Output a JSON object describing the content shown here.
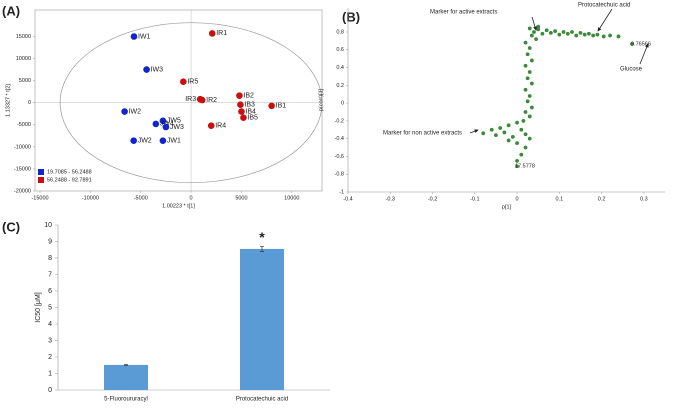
{
  "chart_data": [
    {
      "type": "scatter",
      "title": "(A)",
      "x_label": "1.00223 * t[1]",
      "y_label": "1.13327 * t[2]",
      "xlim": [
        -15500,
        13000
      ],
      "ylim": [
        -20000,
        21000
      ],
      "xticks": [
        -15000,
        -10000,
        -5000,
        0,
        5000,
        10000
      ],
      "yticks": [
        -20000,
        -15000,
        -10000,
        -5000,
        0,
        5000,
        10000,
        15000
      ],
      "legend": "lower left",
      "series": [
        {
          "name": "19.7085 - 56.2488",
          "color": "#1024d0",
          "labels": [
            "IW1",
            "IW3",
            "IW2",
            "JW5",
            "JW4",
            "JW3",
            "JW2",
            "JW1"
          ],
          "x": [
            -5670,
            -4420,
            -6600,
            -2800,
            -3500,
            -2500,
            -5700,
            -2800
          ],
          "values": [
            15000,
            7500,
            -2000,
            -4100,
            -4800,
            -5500,
            -8600,
            -8600
          ]
        },
        {
          "name": "56.2488 - 92.7891",
          "color": "#c81010",
          "labels": [
            "IR1",
            "IR5",
            "IR3",
            "IR2",
            "IB2",
            "IB1",
            "IB3",
            "IB4",
            "IB5",
            "IR4"
          ],
          "x": [
            2100,
            -770,
            900,
            1100,
            4800,
            8000,
            4900,
            5000,
            5200,
            2000
          ],
          "values": [
            15700,
            4770,
            800,
            600,
            1600,
            -700,
            -450,
            -2000,
            -3400,
            -5200
          ]
        }
      ]
    },
    {
      "type": "scatter",
      "title": "(B)",
      "x_label": "p[1]",
      "y_label": "p(corr)[1]",
      "xlim": [
        -0.4,
        0.35
      ],
      "ylim": [
        -1,
        1.07
      ],
      "xticks": [
        -0.4,
        -0.3,
        -0.2,
        -0.1,
        0,
        0.1,
        0.2,
        0.3
      ],
      "yticks": [
        -1,
        -0.8,
        -0.6,
        -0.4,
        -0.2,
        0,
        0.2,
        0.4,
        0.6,
        0.8
      ],
      "annotations": [
        "Marker for active extracts",
        "Protocatechuic acid",
        "Glucose",
        "Marker for non active extracts",
        "9.76566",
        "17.5778"
      ],
      "series": [
        {
          "color": "#3b8a3b",
          "x": [
            0.03,
            0.04,
            0.05,
            0.06,
            0.07,
            0.08,
            0.09,
            0.1,
            0.11,
            0.12,
            0.13,
            0.14,
            0.15,
            0.16,
            0.17,
            0.18,
            0.19,
            0.205,
            0.22,
            0.24,
            0.272,
            0.05,
            0.035,
            0.045,
            0.02,
            0.03,
            0.025,
            0.035,
            0.02,
            0.03,
            0.025,
            0.035,
            0.02,
            0.03,
            0.025,
            0.035,
            0.02,
            0.03,
            0.015,
            0,
            -0.02,
            -0.04,
            -0.06,
            0.01,
            -0.03,
            0.02,
            -0.01,
            0.03,
            -0.05,
            -0.08,
            0,
            0.02,
            0.01,
            0,
            -0.02,
            0
          ],
          "values": [
            0.84,
            0.8,
            0.83,
            0.78,
            0.82,
            0.79,
            0.81,
            0.77,
            0.8,
            0.78,
            0.8,
            0.76,
            0.79,
            0.77,
            0.78,
            0.76,
            0.77,
            0.75,
            0.76,
            0.75,
            0.665,
            0.86,
            0.76,
            0.72,
            0.68,
            0.62,
            0.55,
            0.48,
            0.42,
            0.35,
            0.28,
            0.22,
            0.15,
            0.08,
            0.02,
            -0.05,
            -0.1,
            -0.15,
            -0.2,
            -0.22,
            -0.25,
            -0.28,
            -0.3,
            -0.3,
            -0.33,
            -0.35,
            -0.38,
            -0.4,
            -0.36,
            -0.34,
            -0.45,
            -0.5,
            -0.58,
            -0.65,
            -0.42,
            -0.71
          ]
        }
      ]
    },
    {
      "type": "bar",
      "title": "(C)",
      "y_label": "IC50 [μM]",
      "categories": [
        "5-Fluoroururacyl",
        "Protocatechuic acid"
      ],
      "values": [
        1.52,
        8.55
      ],
      "errors": [
        0.03,
        0.15
      ],
      "color": "#5b9bd5",
      "annotations": [
        "*"
      ],
      "ylim": [
        0,
        10
      ],
      "yticks": [
        0,
        1,
        2,
        3,
        4,
        5,
        6,
        7,
        8,
        9,
        10
      ]
    }
  ]
}
